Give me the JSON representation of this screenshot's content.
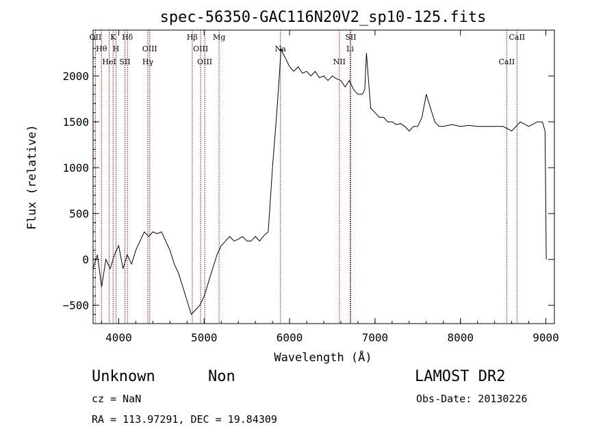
{
  "chart_data": {
    "type": "line",
    "title": "spec-56350-GAC116N20V2_sp10-125.fits",
    "xlabel": "Wavelength (Å)",
    "ylabel": "Flux (relative)",
    "xlim": [
      3700,
      9100
    ],
    "ylim": [
      -700,
      2500
    ],
    "xticks": [
      4000,
      5000,
      6000,
      7000,
      8000,
      9000
    ],
    "yticks": [
      -500,
      0,
      500,
      1000,
      1500,
      2000
    ],
    "grid": false,
    "series": [
      {
        "x": [
          3700,
          3750,
          3800,
          3850,
          3900,
          3950,
          4000,
          4050,
          4100,
          4150,
          4200,
          4250,
          4300,
          4350,
          4400,
          4450,
          4500,
          4550,
          4600,
          4650,
          4700,
          4750,
          4800,
          4850,
          4900,
          4950,
          5000,
          5050,
          5100,
          5150,
          5200,
          5250,
          5300,
          5350,
          5400,
          5450,
          5500,
          5550,
          5600,
          5650,
          5700,
          5750,
          5800,
          5850,
          5880,
          5900,
          5920,
          5950,
          6000,
          6050,
          6100,
          6150,
          6200,
          6250,
          6300,
          6350,
          6400,
          6450,
          6500,
          6550,
          6600,
          6650,
          6700,
          6750,
          6800,
          6850,
          6880,
          6900,
          6920,
          6950,
          7000,
          7050,
          7100,
          7150,
          7200,
          7250,
          7300,
          7350,
          7400,
          7450,
          7500,
          7550,
          7600,
          7650,
          7700,
          7750,
          7800,
          7900,
          8000,
          8100,
          8200,
          8300,
          8400,
          8500,
          8600,
          8700,
          8800,
          8900,
          8960,
          8990,
          9000,
          9005
        ],
        "y": [
          -100,
          50,
          -300,
          0,
          -100,
          50,
          150,
          -100,
          50,
          -50,
          100,
          200,
          300,
          250,
          300,
          280,
          300,
          200,
          100,
          -50,
          -150,
          -300,
          -450,
          -600,
          -550,
          -500,
          -400,
          -250,
          -100,
          50,
          150,
          200,
          250,
          200,
          220,
          250,
          200,
          200,
          250,
          200,
          260,
          300,
          1000,
          1600,
          2000,
          2300,
          2250,
          2200,
          2100,
          2050,
          2100,
          2030,
          2050,
          2000,
          2050,
          1980,
          2000,
          1950,
          2000,
          1970,
          1950,
          1880,
          1950,
          1850,
          1800,
          1800,
          1850,
          2250,
          2000,
          1650,
          1600,
          1550,
          1550,
          1500,
          1500,
          1470,
          1480,
          1450,
          1400,
          1450,
          1450,
          1550,
          1800,
          1650,
          1500,
          1450,
          1450,
          1470,
          1450,
          1460,
          1450,
          1450,
          1450,
          1450,
          1400,
          1500,
          1450,
          1500,
          1500,
          1400,
          500,
          0
        ]
      }
    ],
    "line_labels": [
      {
        "label": "OII",
        "wavelength": 3727
      },
      {
        "label": "Hθ",
        "wavelength": 3798
      },
      {
        "label": "HeI",
        "wavelength": 3889
      },
      {
        "label": "K",
        "wavelength": 3934
      },
      {
        "label": "H",
        "wavelength": 3969
      },
      {
        "label": "SII",
        "wavelength": 4072
      },
      {
        "label": "Hδ",
        "wavelength": 4102
      },
      {
        "label": "OIII",
        "wavelength": 4363
      },
      {
        "label": "Hγ",
        "wavelength": 4341
      },
      {
        "label": "Hβ",
        "wavelength": 4861
      },
      {
        "label": "OIII",
        "wavelength": 4959
      },
      {
        "label": "OIII",
        "wavelength": 5007
      },
      {
        "label": "Mg",
        "wavelength": 5175
      },
      {
        "label": "Na",
        "wavelength": 5893
      },
      {
        "label": "NII",
        "wavelength": 6583
      },
      {
        "label": "SII",
        "wavelength": 6716
      },
      {
        "label": "Li",
        "wavelength": 6708
      },
      {
        "label": "CaII",
        "wavelength": 8542
      },
      {
        "label": "CaII",
        "wavelength": 8662
      }
    ],
    "line_color": "#8b0000"
  },
  "info": {
    "class_label": "Unknown",
    "subclass_label": "Non",
    "survey": "LAMOST DR2",
    "redshift": "cz = NaN",
    "obs_date": "Obs-Date: 20130226",
    "coords": "RA = 113.97291, DEC =  19.84309"
  }
}
